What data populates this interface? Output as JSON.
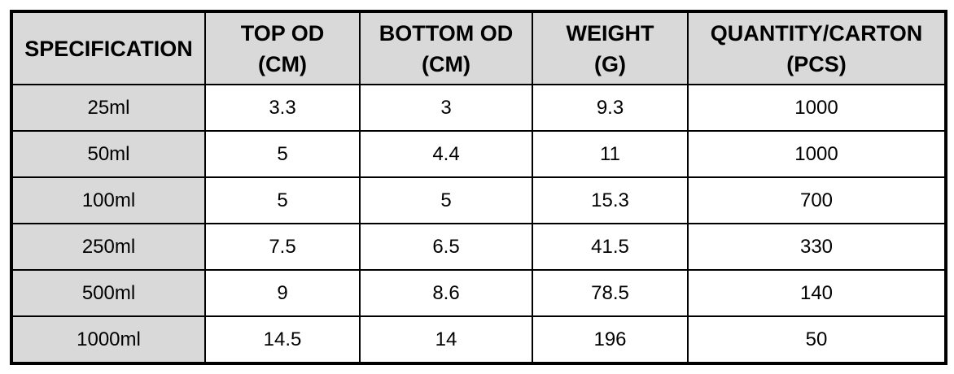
{
  "table": {
    "header": [
      [
        "SPECIFICATION"
      ],
      [
        "TOP OD",
        "(CM)"
      ],
      [
        "BOTTOM OD",
        "(CM)"
      ],
      [
        "WEIGHT",
        "(G)"
      ],
      [
        "QUANTITY/CARTON",
        "(PCS)"
      ]
    ],
    "rows": [
      [
        "25ml",
        3.3,
        3,
        9.3,
        1000
      ],
      [
        "50ml",
        5,
        4.4,
        11,
        1000
      ],
      [
        "100ml",
        5,
        5,
        15.3,
        700
      ],
      [
        "250ml",
        7.5,
        6.5,
        41.5,
        330
      ],
      [
        "500ml",
        9,
        8.6,
        78.5,
        140
      ],
      [
        "1000ml",
        14.5,
        14,
        196,
        50
      ]
    ]
  }
}
